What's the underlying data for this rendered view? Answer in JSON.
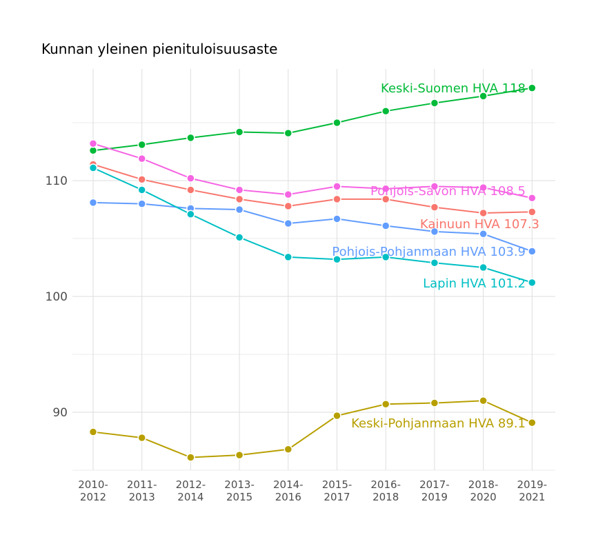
{
  "chart_data": {
    "type": "line",
    "title": "Kunnan yleinen pienituloisuusaste",
    "xlabel": "",
    "ylabel": "",
    "categories": [
      "2010-\n2012",
      "2011-\n2013",
      "2012-\n2014",
      "2013-\n2015",
      "2014-\n2016",
      "2015-\n2017",
      "2016-\n2018",
      "2017-\n2019",
      "2018-\n2020",
      "2019-\n2021"
    ],
    "ylim": [
      85,
      119.5
    ],
    "yticks": [
      90,
      100,
      110
    ],
    "grid": true,
    "legend": "none (direct labels at last point)",
    "series": [
      {
        "name": "Keski-Suomen HVA",
        "label": "Keski-Suomen HVA 118",
        "color": "#00ba38",
        "values": [
          112.6,
          113.1,
          113.7,
          114.2,
          114.1,
          115.0,
          116.0,
          116.7,
          117.3,
          118.0
        ]
      },
      {
        "name": "Pohjois-Savon HVA",
        "label": "Pohjois-Savon HVA 108.5",
        "color": "#f564e3",
        "values": [
          113.2,
          111.9,
          110.2,
          109.2,
          108.8,
          109.5,
          109.3,
          109.5,
          109.4,
          108.5
        ]
      },
      {
        "name": "Kainuun HVA",
        "label": "Kainuun HVA 107.3",
        "color": "#f8766d",
        "values": [
          111.4,
          110.1,
          109.2,
          108.4,
          107.8,
          108.4,
          108.4,
          107.7,
          107.2,
          107.3
        ]
      },
      {
        "name": "Pohjois-Pohjanmaan HVA",
        "label": "Pohjois-Pohjanmaan HVA 103.9",
        "color": "#619cff",
        "values": [
          108.1,
          108.0,
          107.6,
          107.5,
          106.3,
          106.7,
          106.1,
          105.6,
          105.4,
          103.9
        ]
      },
      {
        "name": "Lapin HVA",
        "label": "Lapin HVA 101.2",
        "color": "#00bfc4",
        "values": [
          111.1,
          109.2,
          107.1,
          105.1,
          103.4,
          103.2,
          103.4,
          102.9,
          102.5,
          101.2
        ]
      },
      {
        "name": "Keski-Pohjanmaan HVA",
        "label": "Keski-Pohjanmaan HVA 89.1",
        "color": "#b79f00",
        "values": [
          88.3,
          87.8,
          86.1,
          86.3,
          86.8,
          89.7,
          90.7,
          90.8,
          91.0,
          89.1
        ]
      }
    ]
  }
}
